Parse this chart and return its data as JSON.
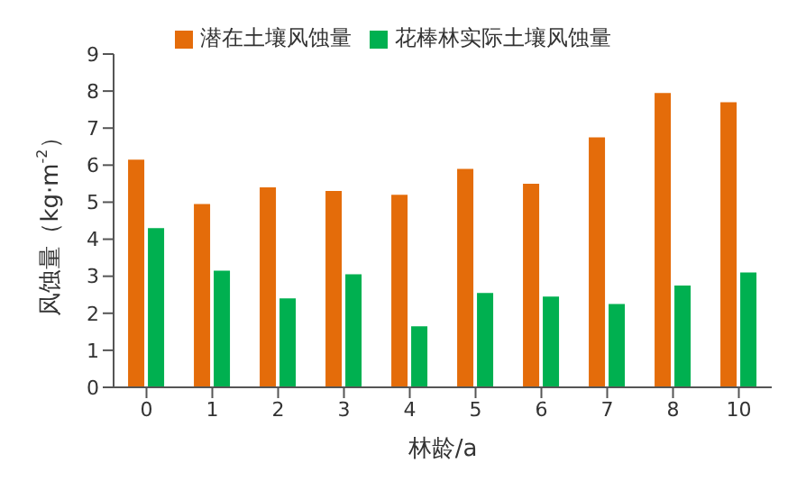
{
  "chart_data": {
    "type": "bar",
    "xlabel": "林龄/a",
    "ylabel": "风蚀量（kg·m$^{-2}$）",
    "categories": [
      "0",
      "1",
      "2",
      "3",
      "4",
      "5",
      "6",
      "7",
      "8",
      "10"
    ],
    "series": [
      {
        "name": "潜在土壤风蚀量",
        "color": "#e46c0a",
        "values": [
          6.15,
          4.95,
          5.4,
          5.3,
          5.2,
          5.9,
          5.5,
          6.75,
          7.95,
          7.7
        ]
      },
      {
        "name": "花棒林实际土壤风蚀量",
        "color": "#00b050",
        "values": [
          4.3,
          3.15,
          2.4,
          3.05,
          1.65,
          2.55,
          2.45,
          2.25,
          2.75,
          3.1
        ]
      }
    ],
    "ylim": [
      0,
      9
    ],
    "yticks": [
      0,
      1,
      2,
      3,
      4,
      5,
      6,
      7,
      8,
      9
    ],
    "grid": false,
    "legend": "top"
  }
}
